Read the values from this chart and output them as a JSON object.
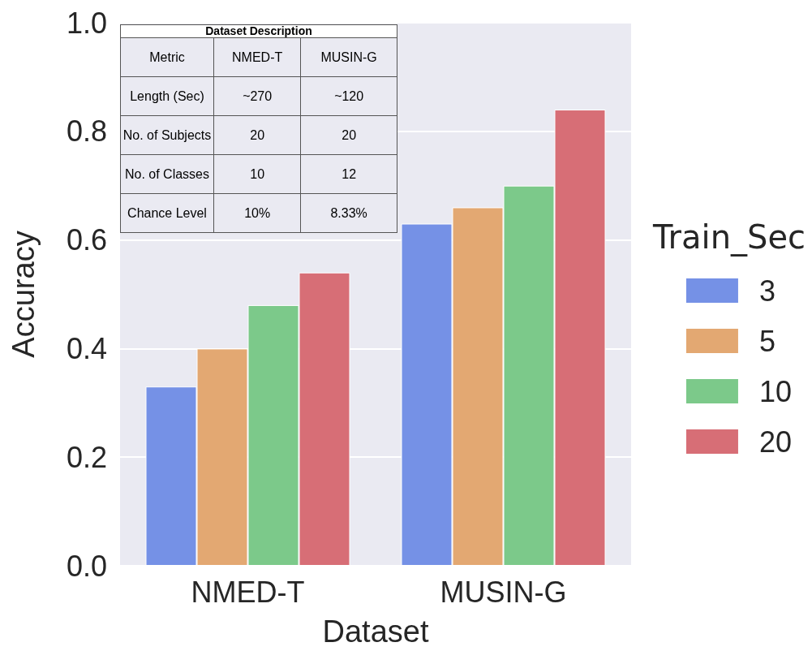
{
  "chart_data": [
    {
      "type": "bar",
      "xlabel": "Dataset",
      "ylabel": "Accuracy",
      "categories": [
        "NMED-T",
        "MUSIN-G"
      ],
      "legend_title": "Train_Sec",
      "legend": "right",
      "series": [
        {
          "name": "3",
          "color": "#7591e6",
          "values": [
            0.33,
            0.63
          ]
        },
        {
          "name": "5",
          "color": "#e3a872",
          "values": [
            0.4,
            0.66
          ]
        },
        {
          "name": "10",
          "color": "#7cc98a",
          "values": [
            0.48,
            0.7
          ]
        },
        {
          "name": "20",
          "color": "#d76e76",
          "values": [
            0.54,
            0.84
          ]
        }
      ],
      "ylim": [
        0,
        1
      ],
      "yticks": [
        {
          "value": 0,
          "label": "0.0"
        },
        {
          "value": 0.2,
          "label": "0.2"
        },
        {
          "value": 0.4,
          "label": "0.4"
        },
        {
          "value": 0.6,
          "label": "0.6"
        },
        {
          "value": 0.8,
          "label": "0.8"
        },
        {
          "value": 1,
          "label": "1.0"
        }
      ],
      "grid": "y"
    },
    {
      "type": "other",
      "title": "Dataset Description",
      "annotations": [
        "Metric",
        "NMED-T",
        "MUSIN-G",
        "Length (Sec)",
        "~270",
        "~120",
        "No. of Subjects",
        "20",
        "20",
        "No. of Classes",
        "10",
        "12",
        "Chance Level",
        "10%",
        "8.33%"
      ]
    }
  ]
}
